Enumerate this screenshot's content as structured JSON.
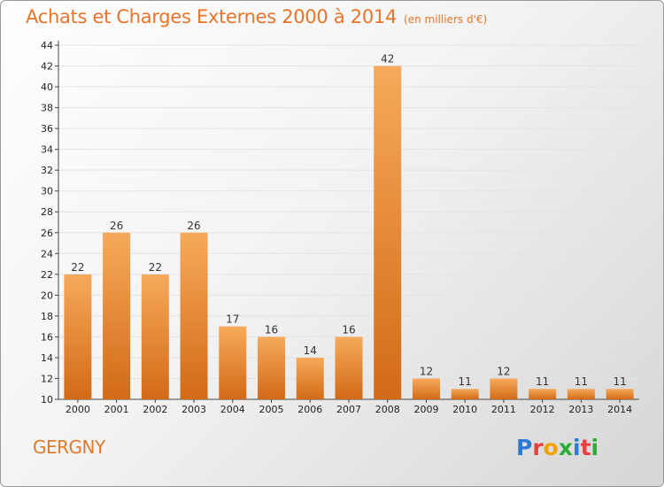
{
  "header": {
    "title": "Achats et Charges Externes 2000 à 2014",
    "unit": "(en milliers d'€)"
  },
  "commune": "GERGNY",
  "logo": {
    "text": "Proxiti",
    "colors": [
      "#2b7bd3",
      "#e83f3f",
      "#f0a300",
      "#2eaa3a",
      "#2b7bd3",
      "#e83f3f",
      "#2eaa3a"
    ]
  },
  "colors": {
    "bar_light": "#f6aa5b",
    "bar_dark": "#d26a16",
    "accent": "#e8742a"
  },
  "chart_data": {
    "type": "bar",
    "title": "Achats et Charges Externes 2000 à 2014",
    "subtitle": "(en milliers d'€)",
    "categories": [
      "2000",
      "2001",
      "2002",
      "2003",
      "2004",
      "2005",
      "2006",
      "2007",
      "2008",
      "2009",
      "2010",
      "2011",
      "2012",
      "2013",
      "2014"
    ],
    "values": [
      22,
      26,
      22,
      26,
      17,
      16,
      14,
      16,
      42,
      12,
      11,
      12,
      11,
      11,
      11
    ],
    "ylim": [
      10,
      44
    ],
    "yticks": [
      10,
      12,
      14,
      16,
      18,
      20,
      22,
      24,
      26,
      28,
      30,
      32,
      34,
      36,
      38,
      40,
      42,
      44
    ],
    "grid": true,
    "legend": "none"
  }
}
